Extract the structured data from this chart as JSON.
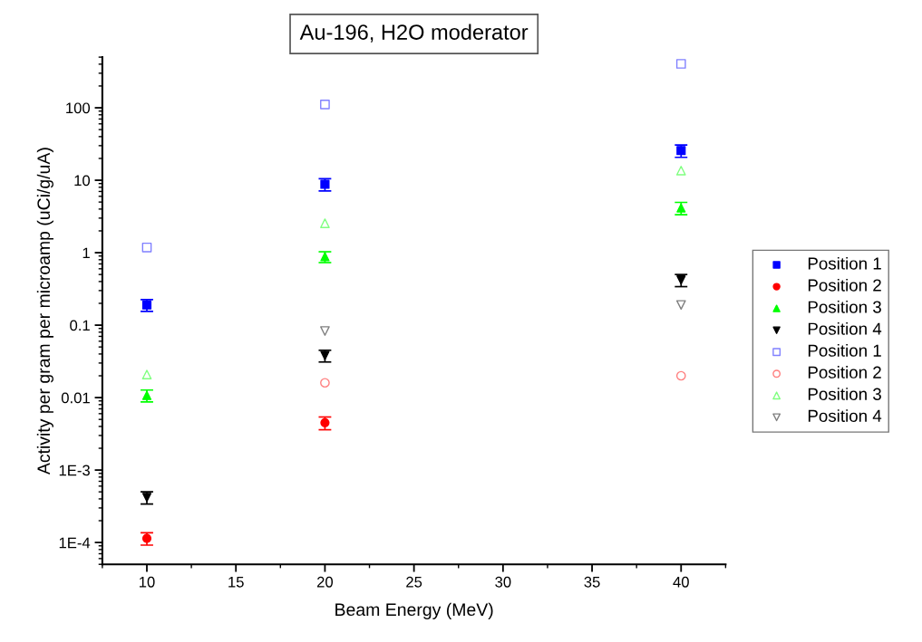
{
  "chart_data": {
    "type": "scatter",
    "title": "Au-196, H2O moderator",
    "xlabel": "Beam Energy (MeV)",
    "ylabel": "Activity per gram per microamp (uCi/g/uA)",
    "x": [
      10,
      20,
      40
    ],
    "series": [
      {
        "name": "Position 1",
        "color": "#0000ff",
        "marker": "square",
        "values": [
          0.19,
          8.8,
          25.7
        ],
        "errors": [
          0.035,
          1.7,
          5
        ]
      },
      {
        "name": "Position 2",
        "color": "#ff0000",
        "marker": "circle",
        "values": [
          0.000114,
          0.0045,
          null
        ],
        "errors": [
          2.2e-05,
          0.0009,
          null
        ]
      },
      {
        "name": "Position 3",
        "color": "#00ff00",
        "marker": "triangle",
        "values": [
          0.0107,
          0.88,
          4.15
        ],
        "errors": [
          0.002,
          0.15,
          0.8
        ]
      },
      {
        "name": "Position 4",
        "color": "#000000",
        "marker": "triangle_down",
        "values": [
          0.00042,
          0.038,
          0.42
        ],
        "errors": [
          8e-05,
          0.007,
          0.08
        ]
      },
      {
        "name": "Position 1",
        "color": "#8080ff",
        "marker": "square",
        "values": [
          1.18,
          111,
          404
        ]
      },
      {
        "name": "Position 2",
        "color": "#ff8080",
        "marker": "circle",
        "values": [
          null,
          0.016,
          0.02
        ]
      },
      {
        "name": "Position 3",
        "color": "#80ff80",
        "marker": "triangle",
        "values": [
          0.0208,
          2.55,
          13.6
        ]
      },
      {
        "name": "Position 4",
        "color": "#808080",
        "marker": "triangle_down",
        "values": [
          null,
          0.083,
          0.19
        ]
      }
    ],
    "log": "y",
    "xlim": [
      7.5,
      42.5
    ],
    "xticks": [
      10,
      15,
      20,
      25,
      30,
      35,
      40
    ],
    "ylim": [
      5e-05,
      500
    ],
    "yticks": [
      {
        "value": 0.0001,
        "label": "1E-4"
      },
      {
        "value": 0.001,
        "label": "1E-3"
      },
      0.01,
      0.1,
      1,
      10,
      100
    ],
    "grid": false,
    "legend": "right"
  }
}
